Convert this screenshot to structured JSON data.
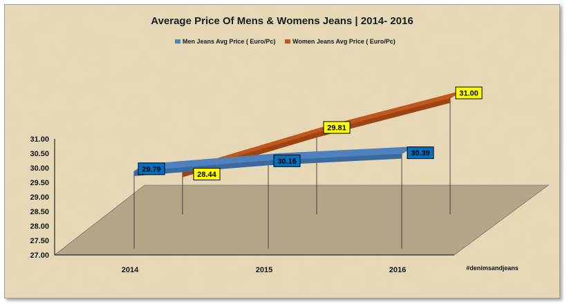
{
  "chart_data": {
    "type": "line",
    "title": "Average Price Of Mens & Womens Jeans | 2014- 2016",
    "categories": [
      "2014",
      "2015",
      "2016"
    ],
    "series": [
      {
        "name": "Men Jeans Avg Price ( Euro/Pc)",
        "values": [
          29.79,
          30.16,
          30.39
        ],
        "labels": [
          "29.79",
          "30.16",
          "30.39"
        ],
        "color": "#4f81bd",
        "label_bg": "#0070c0"
      },
      {
        "name": "Women Jeans Avg Price ( Euro/Pc)",
        "values": [
          28.44,
          29.81,
          31.0
        ],
        "labels": [
          "28.44",
          "29.81",
          "31.00"
        ],
        "color": "#c0581e",
        "label_bg": "#ffff00"
      }
    ],
    "yticks": [
      "27.00",
      "27.50",
      "28.00",
      "28.50",
      "29.00",
      "29.50",
      "30.00",
      "30.50",
      "31.00"
    ],
    "ylim": [
      27.0,
      31.0
    ],
    "legend": "top",
    "grid": false,
    "annotation": "#denimsandjeans"
  },
  "colors": {
    "background": "#e6d7b4",
    "floor": "#b8a88a",
    "axis": "#000000"
  }
}
